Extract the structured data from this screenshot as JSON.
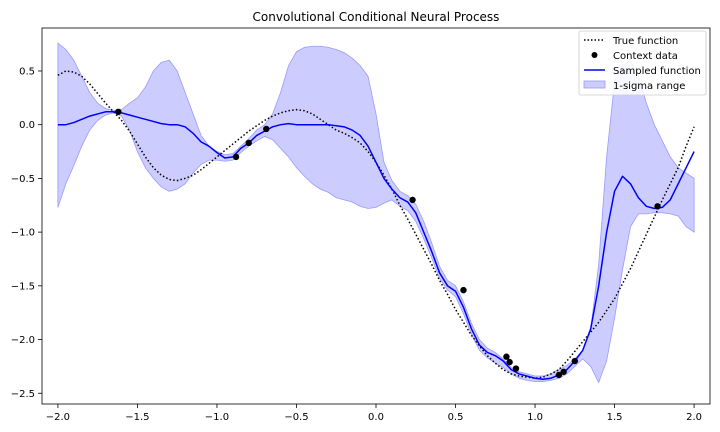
{
  "chart_data": {
    "type": "line",
    "title": "Convolutional Conditional Neural Process",
    "xlabel": "",
    "ylabel": "",
    "xlim": [
      -2.1,
      2.1
    ],
    "ylim": [
      -2.6,
      0.9
    ],
    "xticks": [
      -2.0,
      -1.5,
      -1.0,
      -0.5,
      0.0,
      0.5,
      1.0,
      1.5,
      2.0
    ],
    "xtick_labels": [
      "−2.0",
      "−1.5",
      "−1.0",
      "−0.5",
      "0.0",
      "0.5",
      "1.0",
      "1.5",
      "2.0"
    ],
    "yticks": [
      0.5,
      0.0,
      -0.5,
      -1.0,
      -1.5,
      -2.0,
      -2.5
    ],
    "ytick_labels": [
      "0.5",
      "0.0",
      "−0.5",
      "−1.0",
      "−1.5",
      "−2.0",
      "−2.5"
    ],
    "grid": false,
    "legend_position": "top-right",
    "legend": [
      {
        "label": "True function",
        "kind": "dotted-line",
        "color": "#000000"
      },
      {
        "label": "Context data",
        "kind": "marker",
        "color": "#000000"
      },
      {
        "label": "Sampled function",
        "kind": "line",
        "color": "#0000ff"
      },
      {
        "label": "1-sigma range",
        "kind": "band",
        "color": "#7f7fff"
      }
    ],
    "colors": {
      "true_function": "#000000",
      "context": "#000000",
      "sampled": "#0000ff",
      "band_fill": "#ccccff",
      "band_edge": "#9a9aff"
    },
    "series": [
      {
        "name": "True function",
        "style": "dotted",
        "x": [
          -2.0,
          -1.95,
          -1.9,
          -1.85,
          -1.8,
          -1.75,
          -1.7,
          -1.65,
          -1.6,
          -1.55,
          -1.5,
          -1.45,
          -1.4,
          -1.35,
          -1.3,
          -1.25,
          -1.2,
          -1.15,
          -1.1,
          -1.05,
          -1.0,
          -0.95,
          -0.9,
          -0.85,
          -0.8,
          -0.75,
          -0.7,
          -0.65,
          -0.6,
          -0.55,
          -0.5,
          -0.45,
          -0.4,
          -0.35,
          -0.3,
          -0.25,
          -0.2,
          -0.15,
          -0.1,
          -0.05,
          0.0,
          0.05,
          0.1,
          0.15,
          0.2,
          0.25,
          0.3,
          0.35,
          0.4,
          0.45,
          0.5,
          0.55,
          0.6,
          0.65,
          0.7,
          0.75,
          0.8,
          0.85,
          0.9,
          0.95,
          1.0,
          1.05,
          1.1,
          1.15,
          1.2,
          1.25,
          1.3,
          1.35,
          1.4,
          1.45,
          1.5,
          1.55,
          1.6,
          1.65,
          1.7,
          1.75,
          1.8,
          1.85,
          1.9,
          1.95,
          2.0
        ],
        "y": [
          0.46,
          0.5,
          0.49,
          0.45,
          0.38,
          0.29,
          0.2,
          0.12,
          0.04,
          -0.06,
          -0.18,
          -0.3,
          -0.4,
          -0.47,
          -0.51,
          -0.52,
          -0.5,
          -0.47,
          -0.42,
          -0.36,
          -0.3,
          -0.24,
          -0.18,
          -0.12,
          -0.06,
          -0.01,
          0.04,
          0.08,
          0.11,
          0.13,
          0.14,
          0.13,
          0.1,
          0.05,
          0.0,
          -0.05,
          -0.08,
          -0.12,
          -0.17,
          -0.25,
          -0.35,
          -0.47,
          -0.6,
          -0.75,
          -0.88,
          -1.02,
          -1.16,
          -1.3,
          -1.45,
          -1.58,
          -1.72,
          -1.84,
          -1.96,
          -2.06,
          -2.15,
          -2.22,
          -2.28,
          -2.32,
          -2.34,
          -2.35,
          -2.36,
          -2.35,
          -2.32,
          -2.28,
          -2.2,
          -2.11,
          -2.02,
          -1.93,
          -1.84,
          -1.73,
          -1.62,
          -1.48,
          -1.34,
          -1.18,
          -1.02,
          -0.86,
          -0.7,
          -0.55,
          -0.4,
          -0.2,
          -0.02
        ]
      },
      {
        "name": "Sampled function",
        "style": "solid",
        "x": [
          -2.0,
          -1.95,
          -1.9,
          -1.85,
          -1.8,
          -1.75,
          -1.7,
          -1.65,
          -1.6,
          -1.55,
          -1.5,
          -1.45,
          -1.4,
          -1.35,
          -1.3,
          -1.25,
          -1.2,
          -1.15,
          -1.1,
          -1.05,
          -1.0,
          -0.95,
          -0.9,
          -0.85,
          -0.8,
          -0.75,
          -0.7,
          -0.65,
          -0.6,
          -0.55,
          -0.5,
          -0.45,
          -0.4,
          -0.35,
          -0.3,
          -0.25,
          -0.2,
          -0.15,
          -0.1,
          -0.05,
          0.0,
          0.05,
          0.1,
          0.15,
          0.2,
          0.25,
          0.3,
          0.35,
          0.4,
          0.45,
          0.5,
          0.55,
          0.6,
          0.65,
          0.7,
          0.75,
          0.8,
          0.85,
          0.9,
          0.95,
          1.0,
          1.05,
          1.1,
          1.15,
          1.2,
          1.25,
          1.3,
          1.35,
          1.4,
          1.45,
          1.5,
          1.55,
          1.6,
          1.65,
          1.7,
          1.75,
          1.8,
          1.85,
          1.9,
          1.95,
          2.0
        ],
        "y": [
          0.0,
          0.0,
          0.02,
          0.05,
          0.08,
          0.1,
          0.12,
          0.12,
          0.11,
          0.09,
          0.07,
          0.05,
          0.03,
          0.01,
          0.0,
          0.0,
          -0.02,
          -0.08,
          -0.16,
          -0.2,
          -0.26,
          -0.31,
          -0.3,
          -0.22,
          -0.17,
          -0.1,
          -0.06,
          -0.02,
          0.0,
          0.01,
          0.0,
          0.0,
          0.0,
          0.0,
          0.0,
          -0.01,
          -0.02,
          -0.05,
          -0.1,
          -0.2,
          -0.35,
          -0.5,
          -0.6,
          -0.68,
          -0.72,
          -0.82,
          -1.0,
          -1.18,
          -1.38,
          -1.5,
          -1.55,
          -1.7,
          -1.9,
          -2.05,
          -2.12,
          -2.15,
          -2.2,
          -2.28,
          -2.32,
          -2.34,
          -2.36,
          -2.37,
          -2.36,
          -2.33,
          -2.28,
          -2.2,
          -2.1,
          -1.9,
          -1.5,
          -1.0,
          -0.62,
          -0.48,
          -0.55,
          -0.68,
          -0.76,
          -0.78,
          -0.77,
          -0.7,
          -0.55,
          -0.4,
          -0.25
        ]
      }
    ],
    "band": {
      "name": "1-sigma range",
      "x": [
        -2.0,
        -1.95,
        -1.9,
        -1.85,
        -1.8,
        -1.75,
        -1.7,
        -1.65,
        -1.6,
        -1.55,
        -1.5,
        -1.45,
        -1.4,
        -1.35,
        -1.3,
        -1.25,
        -1.2,
        -1.15,
        -1.1,
        -1.05,
        -1.0,
        -0.95,
        -0.9,
        -0.85,
        -0.8,
        -0.75,
        -0.7,
        -0.65,
        -0.6,
        -0.55,
        -0.5,
        -0.45,
        -0.4,
        -0.35,
        -0.3,
        -0.25,
        -0.2,
        -0.15,
        -0.1,
        -0.05,
        0.0,
        0.05,
        0.1,
        0.15,
        0.2,
        0.25,
        0.3,
        0.35,
        0.4,
        0.45,
        0.5,
        0.55,
        0.6,
        0.65,
        0.7,
        0.75,
        0.8,
        0.85,
        0.9,
        0.95,
        1.0,
        1.05,
        1.1,
        1.15,
        1.2,
        1.25,
        1.3,
        1.35,
        1.4,
        1.45,
        1.5,
        1.55,
        1.6,
        1.65,
        1.7,
        1.75,
        1.8,
        1.85,
        1.9,
        1.95,
        2.0
      ],
      "upper": [
        0.76,
        0.7,
        0.6,
        0.45,
        0.3,
        0.2,
        0.15,
        0.13,
        0.14,
        0.2,
        0.25,
        0.35,
        0.5,
        0.58,
        0.6,
        0.5,
        0.3,
        0.1,
        -0.1,
        -0.2,
        -0.25,
        -0.28,
        -0.27,
        -0.2,
        -0.13,
        -0.05,
        0.0,
        0.1,
        0.3,
        0.55,
        0.68,
        0.72,
        0.73,
        0.73,
        0.72,
        0.7,
        0.67,
        0.62,
        0.55,
        0.45,
        0.1,
        -0.35,
        -0.52,
        -0.62,
        -0.66,
        -0.74,
        -0.9,
        -1.1,
        -1.32,
        -1.45,
        -1.5,
        -1.65,
        -1.85,
        -2.0,
        -2.08,
        -2.12,
        -2.18,
        -2.26,
        -2.3,
        -2.32,
        -2.34,
        -2.34,
        -2.32,
        -2.28,
        -2.24,
        -2.18,
        -2.1,
        -1.9,
        -1.3,
        -0.3,
        0.4,
        0.55,
        0.6,
        0.45,
        0.2,
        0.0,
        -0.15,
        -0.3,
        -0.4,
        -0.45,
        -0.5
      ],
      "lower": [
        -0.77,
        -0.55,
        -0.38,
        -0.2,
        -0.05,
        0.04,
        0.09,
        0.11,
        0.08,
        -0.05,
        -0.25,
        -0.4,
        -0.5,
        -0.58,
        -0.62,
        -0.6,
        -0.55,
        -0.45,
        -0.37,
        -0.33,
        -0.33,
        -0.34,
        -0.33,
        -0.26,
        -0.2,
        -0.15,
        -0.11,
        -0.14,
        -0.22,
        -0.3,
        -0.4,
        -0.48,
        -0.55,
        -0.6,
        -0.63,
        -0.68,
        -0.7,
        -0.72,
        -0.76,
        -0.78,
        -0.77,
        -0.73,
        -0.7,
        -0.76,
        -0.8,
        -0.9,
        -1.06,
        -1.24,
        -1.43,
        -1.54,
        -1.6,
        -1.76,
        -1.95,
        -2.1,
        -2.17,
        -2.22,
        -2.26,
        -2.32,
        -2.36,
        -2.38,
        -2.39,
        -2.39,
        -2.38,
        -2.36,
        -2.32,
        -2.25,
        -2.18,
        -2.25,
        -2.4,
        -2.2,
        -1.8,
        -1.35,
        -0.95,
        -0.83,
        -0.83,
        -0.82,
        -0.82,
        -0.83,
        -0.85,
        -0.95,
        -1.0
      ]
    },
    "context_points": {
      "name": "Context data",
      "x": [
        -1.62,
        -0.88,
        -0.8,
        -0.69,
        0.23,
        0.55,
        0.82,
        0.84,
        0.88,
        1.15,
        1.18,
        1.25,
        1.77
      ],
      "y": [
        0.12,
        -0.3,
        -0.17,
        -0.04,
        -0.7,
        -1.54,
        -2.16,
        -2.21,
        -2.27,
        -2.33,
        -2.3,
        -2.2,
        -0.76
      ]
    }
  }
}
